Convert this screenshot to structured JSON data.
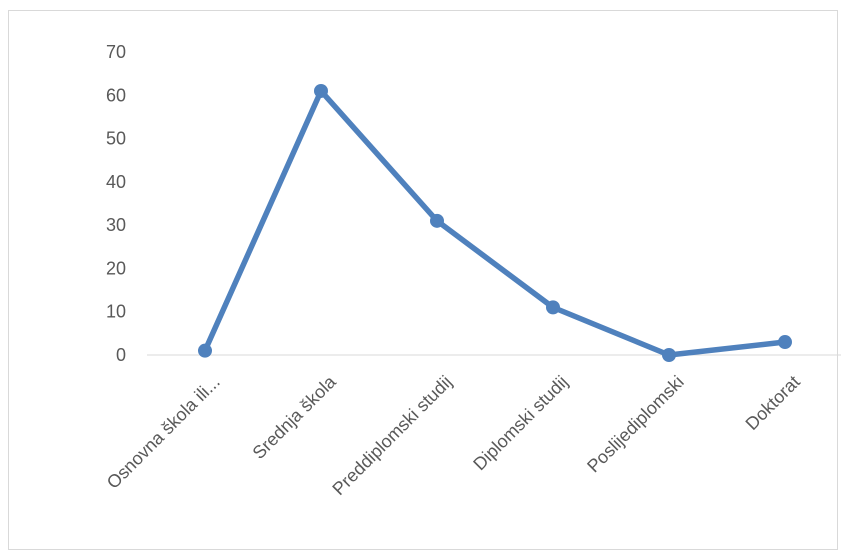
{
  "chart_data": {
    "type": "line",
    "title": "",
    "xlabel": "",
    "ylabel": "",
    "categories": [
      "Osnovna škola ili...",
      "Srednja škola",
      "Preddiplomski studij",
      "Diplomski studij",
      "Poslijediplomski",
      "Doktorat"
    ],
    "series": [
      {
        "values": [
          1,
          61,
          31,
          11,
          0,
          3
        ],
        "color": "#4f81bd"
      }
    ],
    "ylim": [
      0,
      70
    ],
    "yticks": [
      0,
      10,
      20,
      30,
      40,
      50,
      60,
      70
    ],
    "grid": false,
    "legend": "none"
  }
}
